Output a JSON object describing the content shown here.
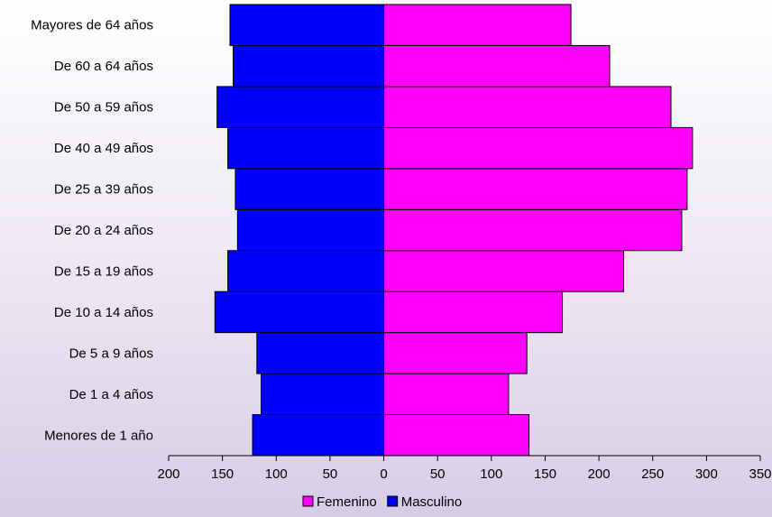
{
  "chart_data": {
    "type": "bar",
    "orientation": "horizontal",
    "layout": "population-pyramid",
    "categories": [
      "Menores de 1 año",
      "De 1 a 4 años",
      "De 5 a 9 años",
      "De 10 a 14 años",
      "De 15 a 19 años",
      "De 20 a 24 años",
      "De 25 a 39 años",
      "De 40 a 49 años",
      "De 50 a 59 años",
      "De 60 a 64 años",
      "Mayores de 64 años"
    ],
    "series": [
      {
        "name": "Femenino",
        "color": "#ff00ff",
        "side": "right",
        "values": [
          135,
          116,
          133,
          166,
          223,
          277,
          282,
          287,
          267,
          210,
          174
        ]
      },
      {
        "name": "Masculino",
        "color": "#0000ff",
        "side": "left",
        "values": [
          122,
          114,
          118,
          157,
          145,
          136,
          138,
          145,
          155,
          140,
          143
        ]
      }
    ],
    "xlim": [
      -200,
      350
    ],
    "x_ticks": [
      -200,
      -150,
      -100,
      -50,
      0,
      50,
      100,
      150,
      200,
      250,
      300,
      350
    ],
    "x_tick_labels": [
      "200",
      "150",
      "100",
      "50",
      "0",
      "50",
      "100",
      "150",
      "200",
      "250",
      "300",
      "350"
    ],
    "title": "",
    "xlabel": "",
    "ylabel": "",
    "grid": false,
    "legend_position": "bottom"
  }
}
